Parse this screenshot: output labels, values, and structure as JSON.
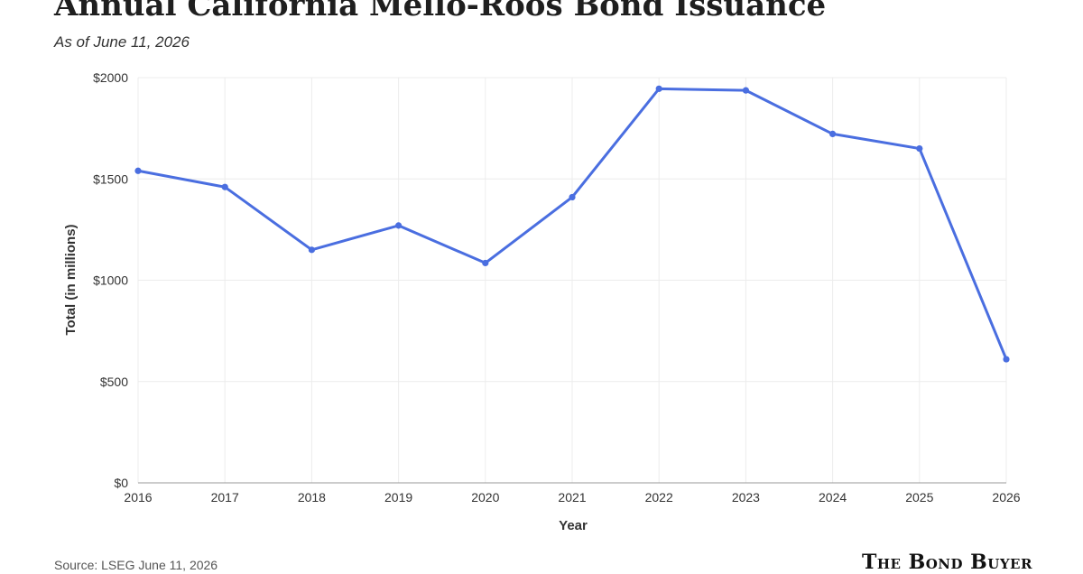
{
  "title": "Annual California Mello-Roos Bond Issuance",
  "subtitle": "As of June 11, 2026",
  "source": "Source: LSEG June 11, 2026",
  "logo": "The Bond Buyer",
  "colors": {
    "line": "#4a6ee0",
    "grid": "#ececec",
    "axis": "#999999"
  },
  "chart_data": {
    "type": "line",
    "xlabel": "Year",
    "ylabel": "Total (in millions)",
    "x": [
      "2016",
      "2017",
      "2018",
      "2019",
      "2020",
      "2021",
      "2022",
      "2023",
      "2024",
      "2025",
      "2026"
    ],
    "series": [
      {
        "values": [
          1540,
          1460,
          1150,
          1270,
          1085,
          1410,
          1945,
          1937,
          1722,
          1650,
          610
        ]
      }
    ],
    "ylim": [
      0,
      2000
    ],
    "yticks": [
      0,
      500,
      1000,
      1500,
      2000
    ],
    "ytick_labels": [
      "$0",
      "$500",
      "$1000",
      "$1500",
      "$2000"
    ],
    "grid": true
  }
}
